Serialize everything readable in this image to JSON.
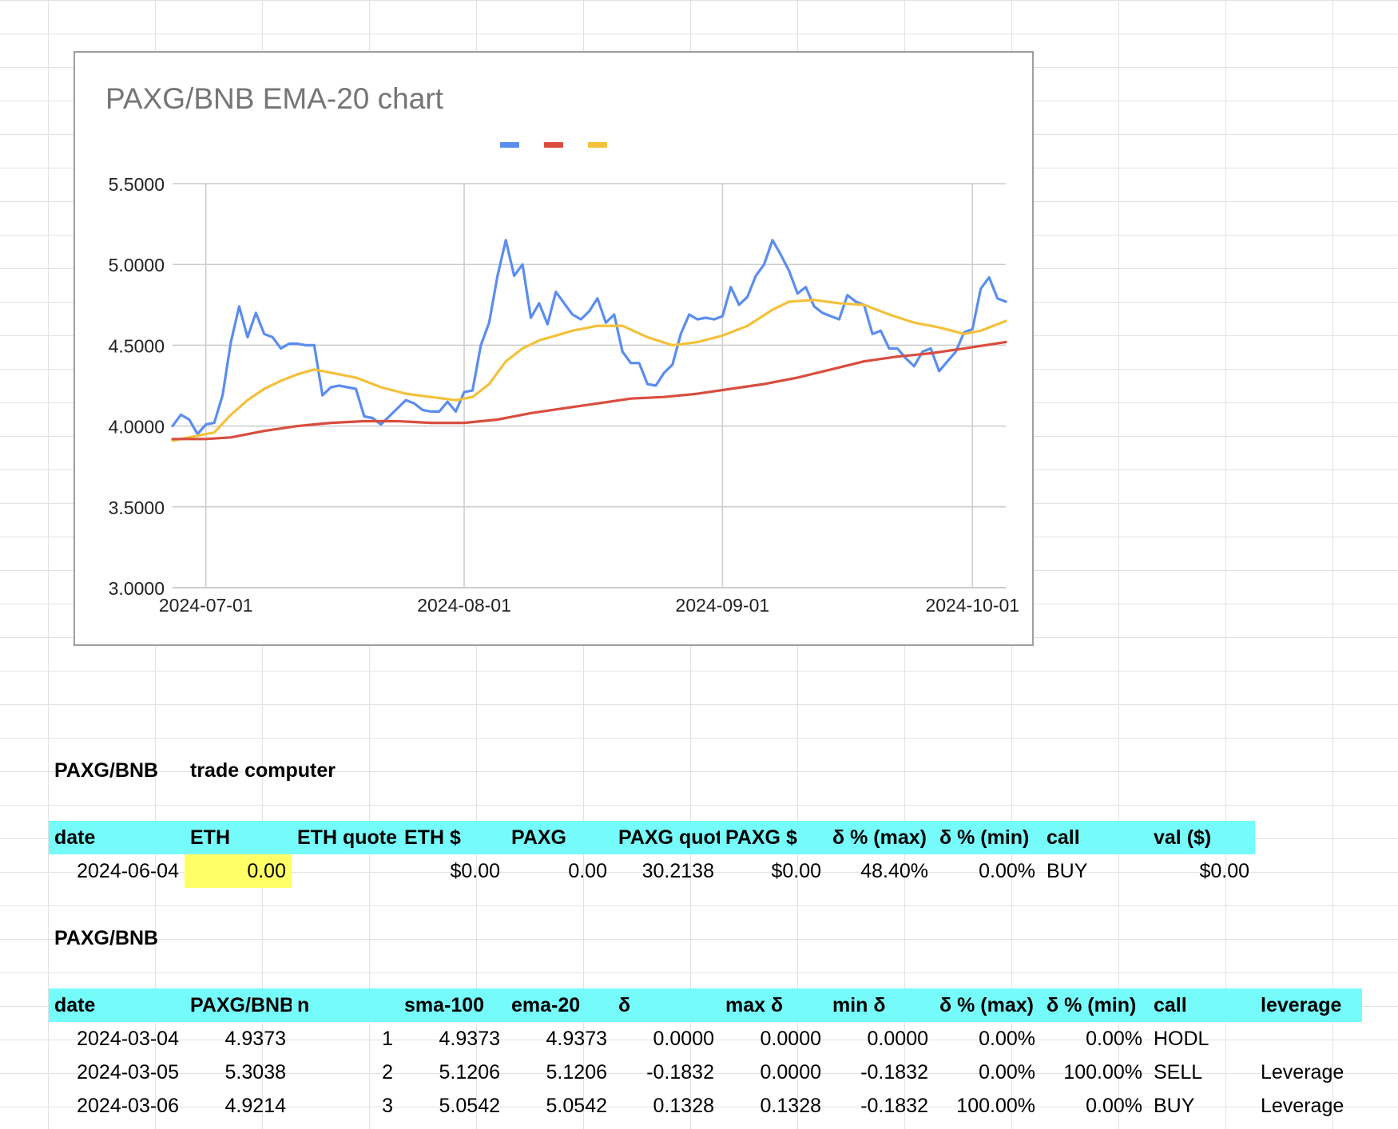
{
  "chart_data": {
    "type": "line",
    "title": "PAXG/BNB EMA-20 chart",
    "xlabel": "",
    "ylabel": "",
    "x_ticks": [
      "2024-07-01",
      "2024-08-01",
      "2024-09-01",
      "2024-10-01"
    ],
    "y_ticks": [
      "5.5000",
      "5.0000",
      "4.5000",
      "4.0000",
      "3.5000",
      "3.0000"
    ],
    "ylim": [
      3.0,
      5.5
    ],
    "xlim": [
      "2024-06-27",
      "2024-10-05"
    ],
    "grid": true,
    "legend": "top-center",
    "colors": [
      "#5b8def",
      "#d94d3f",
      "#f3c13a"
    ],
    "series": [
      {
        "values": [
          [
            "2024-06-27",
            4.0
          ],
          [
            "2024-06-28",
            4.07
          ],
          [
            "2024-06-29",
            4.04
          ],
          [
            "2024-06-30",
            3.95
          ],
          [
            "2024-07-01",
            4.01
          ],
          [
            "2024-07-02",
            4.02
          ],
          [
            "2024-07-03",
            4.19
          ],
          [
            "2024-07-04",
            4.52
          ],
          [
            "2024-07-05",
            4.74
          ],
          [
            "2024-07-06",
            4.55
          ],
          [
            "2024-07-07",
            4.7
          ],
          [
            "2024-07-08",
            4.57
          ],
          [
            "2024-07-09",
            4.55
          ],
          [
            "2024-07-10",
            4.48
          ],
          [
            "2024-07-11",
            4.51
          ],
          [
            "2024-07-12",
            4.51
          ],
          [
            "2024-07-13",
            4.5
          ],
          [
            "2024-07-14",
            4.5
          ],
          [
            "2024-07-15",
            4.19
          ],
          [
            "2024-07-16",
            4.24
          ],
          [
            "2024-07-17",
            4.25
          ],
          [
            "2024-07-18",
            4.24
          ],
          [
            "2024-07-19",
            4.23
          ],
          [
            "2024-07-20",
            4.06
          ],
          [
            "2024-07-21",
            4.05
          ],
          [
            "2024-07-22",
            4.01
          ],
          [
            "2024-07-23",
            4.06
          ],
          [
            "2024-07-24",
            4.11
          ],
          [
            "2024-07-25",
            4.16
          ],
          [
            "2024-07-26",
            4.14
          ],
          [
            "2024-07-27",
            4.1
          ],
          [
            "2024-07-28",
            4.09
          ],
          [
            "2024-07-29",
            4.09
          ],
          [
            "2024-07-30",
            4.15
          ],
          [
            "2024-07-31",
            4.09
          ],
          [
            "2024-08-01",
            4.21
          ],
          [
            "2024-08-02",
            4.22
          ],
          [
            "2024-08-03",
            4.5
          ],
          [
            "2024-08-04",
            4.64
          ],
          [
            "2024-08-05",
            4.93
          ],
          [
            "2024-08-06",
            5.15
          ],
          [
            "2024-08-07",
            4.93
          ],
          [
            "2024-08-08",
            5.0
          ],
          [
            "2024-08-09",
            4.67
          ],
          [
            "2024-08-10",
            4.76
          ],
          [
            "2024-08-11",
            4.63
          ],
          [
            "2024-08-12",
            4.83
          ],
          [
            "2024-08-13",
            4.76
          ],
          [
            "2024-08-14",
            4.69
          ],
          [
            "2024-08-15",
            4.66
          ],
          [
            "2024-08-16",
            4.71
          ],
          [
            "2024-08-17",
            4.79
          ],
          [
            "2024-08-18",
            4.64
          ],
          [
            "2024-08-19",
            4.69
          ],
          [
            "2024-08-20",
            4.46
          ],
          [
            "2024-08-21",
            4.39
          ],
          [
            "2024-08-22",
            4.39
          ],
          [
            "2024-08-23",
            4.26
          ],
          [
            "2024-08-24",
            4.25
          ],
          [
            "2024-08-25",
            4.33
          ],
          [
            "2024-08-26",
            4.38
          ],
          [
            "2024-08-27",
            4.57
          ],
          [
            "2024-08-28",
            4.69
          ],
          [
            "2024-08-29",
            4.66
          ],
          [
            "2024-08-30",
            4.67
          ],
          [
            "2024-08-31",
            4.66
          ],
          [
            "2024-09-01",
            4.68
          ],
          [
            "2024-09-02",
            4.86
          ],
          [
            "2024-09-03",
            4.75
          ],
          [
            "2024-09-04",
            4.8
          ],
          [
            "2024-09-05",
            4.93
          ],
          [
            "2024-09-06",
            5.0
          ],
          [
            "2024-09-07",
            5.15
          ],
          [
            "2024-09-08",
            5.06
          ],
          [
            "2024-09-09",
            4.96
          ],
          [
            "2024-09-10",
            4.82
          ],
          [
            "2024-09-11",
            4.86
          ],
          [
            "2024-09-12",
            4.74
          ],
          [
            "2024-09-13",
            4.7
          ],
          [
            "2024-09-14",
            4.68
          ],
          [
            "2024-09-15",
            4.66
          ],
          [
            "2024-09-16",
            4.81
          ],
          [
            "2024-09-17",
            4.77
          ],
          [
            "2024-09-18",
            4.75
          ],
          [
            "2024-09-19",
            4.57
          ],
          [
            "2024-09-20",
            4.59
          ],
          [
            "2024-09-21",
            4.48
          ],
          [
            "2024-09-22",
            4.48
          ],
          [
            "2024-09-23",
            4.42
          ],
          [
            "2024-09-24",
            4.37
          ],
          [
            "2024-09-25",
            4.46
          ],
          [
            "2024-09-26",
            4.48
          ],
          [
            "2024-09-27",
            4.34
          ],
          [
            "2024-09-28",
            4.4
          ],
          [
            "2024-09-29",
            4.46
          ],
          [
            "2024-09-30",
            4.58
          ],
          [
            "2024-10-01",
            4.6
          ],
          [
            "2024-10-02",
            4.85
          ],
          [
            "2024-10-03",
            4.92
          ],
          [
            "2024-10-04",
            4.79
          ],
          [
            "2024-10-05",
            4.77
          ]
        ]
      },
      {
        "values": [
          [
            "2024-06-27",
            3.92
          ],
          [
            "2024-07-01",
            3.92
          ],
          [
            "2024-07-04",
            3.93
          ],
          [
            "2024-07-08",
            3.97
          ],
          [
            "2024-07-12",
            4.0
          ],
          [
            "2024-07-16",
            4.02
          ],
          [
            "2024-07-20",
            4.03
          ],
          [
            "2024-07-24",
            4.03
          ],
          [
            "2024-07-28",
            4.02
          ],
          [
            "2024-08-01",
            4.02
          ],
          [
            "2024-08-05",
            4.04
          ],
          [
            "2024-08-09",
            4.08
          ],
          [
            "2024-08-13",
            4.11
          ],
          [
            "2024-08-17",
            4.14
          ],
          [
            "2024-08-21",
            4.17
          ],
          [
            "2024-08-25",
            4.18
          ],
          [
            "2024-08-29",
            4.2
          ],
          [
            "2024-09-02",
            4.23
          ],
          [
            "2024-09-06",
            4.26
          ],
          [
            "2024-09-10",
            4.3
          ],
          [
            "2024-09-14",
            4.35
          ],
          [
            "2024-09-18",
            4.4
          ],
          [
            "2024-09-22",
            4.43
          ],
          [
            "2024-09-26",
            4.45
          ],
          [
            "2024-09-30",
            4.48
          ],
          [
            "2024-10-05",
            4.52
          ]
        ]
      },
      {
        "values": [
          [
            "2024-06-27",
            3.91
          ],
          [
            "2024-06-30",
            3.94
          ],
          [
            "2024-07-02",
            3.96
          ],
          [
            "2024-07-04",
            4.07
          ],
          [
            "2024-07-06",
            4.16
          ],
          [
            "2024-07-08",
            4.23
          ],
          [
            "2024-07-10",
            4.28
          ],
          [
            "2024-07-12",
            4.32
          ],
          [
            "2024-07-14",
            4.35
          ],
          [
            "2024-07-16",
            4.33
          ],
          [
            "2024-07-19",
            4.3
          ],
          [
            "2024-07-22",
            4.24
          ],
          [
            "2024-07-25",
            4.2
          ],
          [
            "2024-07-28",
            4.18
          ],
          [
            "2024-07-31",
            4.16
          ],
          [
            "2024-08-02",
            4.18
          ],
          [
            "2024-08-04",
            4.26
          ],
          [
            "2024-08-06",
            4.4
          ],
          [
            "2024-08-08",
            4.48
          ],
          [
            "2024-08-10",
            4.53
          ],
          [
            "2024-08-12",
            4.56
          ],
          [
            "2024-08-14",
            4.59
          ],
          [
            "2024-08-17",
            4.62
          ],
          [
            "2024-08-20",
            4.62
          ],
          [
            "2024-08-23",
            4.55
          ],
          [
            "2024-08-26",
            4.5
          ],
          [
            "2024-08-29",
            4.52
          ],
          [
            "2024-09-01",
            4.56
          ],
          [
            "2024-09-04",
            4.62
          ],
          [
            "2024-09-07",
            4.72
          ],
          [
            "2024-09-09",
            4.77
          ],
          [
            "2024-09-12",
            4.78
          ],
          [
            "2024-09-15",
            4.76
          ],
          [
            "2024-09-18",
            4.75
          ],
          [
            "2024-09-21",
            4.69
          ],
          [
            "2024-09-24",
            4.64
          ],
          [
            "2024-09-27",
            4.61
          ],
          [
            "2024-09-30",
            4.57
          ],
          [
            "2024-10-02",
            4.59
          ],
          [
            "2024-10-05",
            4.65
          ]
        ]
      }
    ]
  },
  "table1": {
    "title_left": "PAXG/BNB",
    "title_right": "trade computer",
    "headers": [
      "date",
      "ETH",
      "ETH quote",
      "ETH $",
      "PAXG",
      "PAXG quote",
      "PAXG $",
      "δ % (max)",
      "δ % (min)",
      "call",
      "val ($)"
    ],
    "row": [
      "2024-06-04",
      "0.00",
      "",
      "$0.00",
      "0.00",
      "30.2138",
      "$0.00",
      "48.40%",
      "0.00%",
      "BUY",
      "$0.00"
    ]
  },
  "table2": {
    "title": "PAXG/BNB",
    "headers": [
      "date",
      "PAXG/BNB",
      "n",
      "sma-100",
      "ema-20",
      "δ",
      "max δ",
      "min δ",
      "δ % (max)",
      "δ % (min)",
      "call",
      "leverage"
    ],
    "rows": [
      [
        "2024-03-04",
        "4.9373",
        "1",
        "4.9373",
        "4.9373",
        "0.0000",
        "0.0000",
        "0.0000",
        "0.00%",
        "0.00%",
        "HODL",
        ""
      ],
      [
        "2024-03-05",
        "5.3038",
        "2",
        "5.1206",
        "5.1206",
        "-0.1832",
        "0.0000",
        "-0.1832",
        "0.00%",
        "100.00%",
        "SELL",
        "Leverage"
      ],
      [
        "2024-03-06",
        "4.9214",
        "3",
        "5.0542",
        "5.0542",
        "0.1328",
        "0.1328",
        "-0.1832",
        "100.00%",
        "0.00%",
        "BUY",
        "Leverage"
      ]
    ]
  }
}
